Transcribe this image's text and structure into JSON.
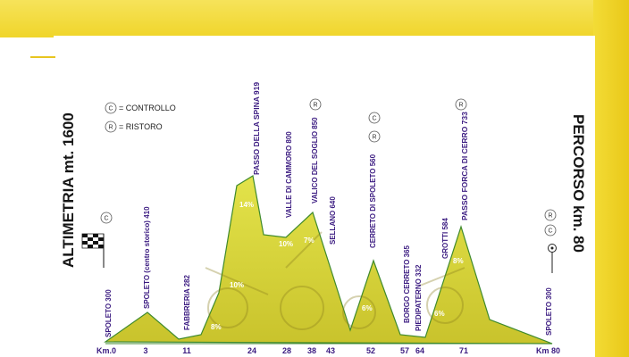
{
  "left_title": "ALTIMETRIA mt. 1600",
  "right_title": "PERCORSO km. 80",
  "legend": {
    "controllo": {
      "symbol": "C",
      "label": "= CONTROLLO"
    },
    "ristoro": {
      "symbol": "R",
      "label": "= RISTORO"
    }
  },
  "axis": {
    "start_label": "Km.0",
    "end_label": "Km 80",
    "km_ticks": [
      "3",
      "11",
      "24",
      "28",
      "38",
      "43",
      "52",
      "57",
      "64",
      "71"
    ]
  },
  "places": [
    "SPOLETO 300",
    "SPOLETO (centro storico) 410",
    "FABBRERIA 282",
    "PASSO DELLA SPINA 919",
    "VALLE DI CAMMORO 800",
    "VALICO DEL SOGLIO 850",
    "SELLANO 640",
    "CERRETO DI SPOLETO 560",
    "BORGO CERRETO 365",
    "PIEDIPATERNO 332",
    "GROTTI 584",
    "PASSO FORCA DI CERRO 733",
    "SPOLETO 300"
  ],
  "badges": [
    "C",
    "R",
    "C",
    "R",
    "R",
    "R",
    "C"
  ],
  "gradients": [
    "8%",
    "10%",
    "14%",
    "10%",
    "7%",
    "6%",
    "8%",
    "6%"
  ],
  "colors": {
    "profile_fill": "#d9dc3c",
    "profile_stroke": "#3f8a2c",
    "title_text": "#3a1a80",
    "header_yellow": "#f0d834"
  }
}
